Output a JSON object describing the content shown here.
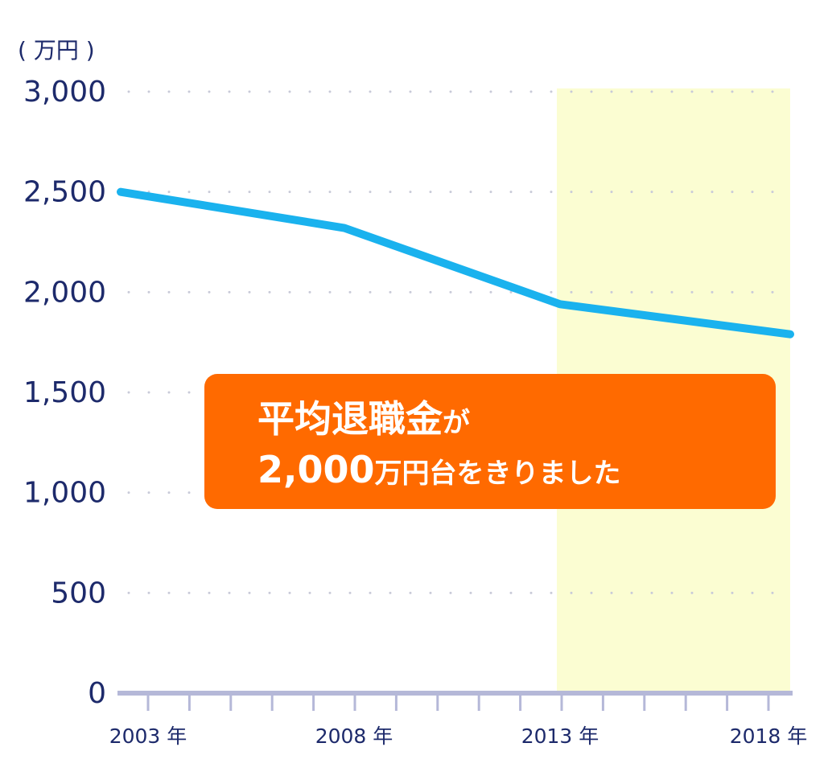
{
  "chart_data": {
    "type": "line",
    "unit_label": "( 万円 )",
    "x": [
      "2003年",
      "2008年",
      "2013年",
      "2018年"
    ],
    "x_tick_labels": [
      "2003 年",
      "2008 年",
      "2013 年",
      "2018 年"
    ],
    "series": [
      {
        "values": [
          2500,
          2320,
          1940,
          1790
        ]
      }
    ],
    "ylim": [
      0,
      3000
    ],
    "y_ticks": [
      0,
      500,
      1000,
      1500,
      2000,
      2500,
      3000
    ],
    "y_tick_labels": [
      "0",
      "500",
      "1,000",
      "1,500",
      "2,000",
      "2,500",
      "3,000"
    ],
    "highlight_range": [
      "2013年",
      "2018年"
    ],
    "grid": "dotted-horizontal",
    "colors": {
      "line": "#1ab2ee",
      "highlight": "#fbfdd2",
      "axis": "#b5b8d8",
      "text": "#1d2a6b",
      "callout": "#ff6a00"
    }
  },
  "callout": {
    "line1_big": "平均退職金",
    "line1_small": "が",
    "line2_big": "2,000",
    "line2_small": "万円台をきりました"
  }
}
